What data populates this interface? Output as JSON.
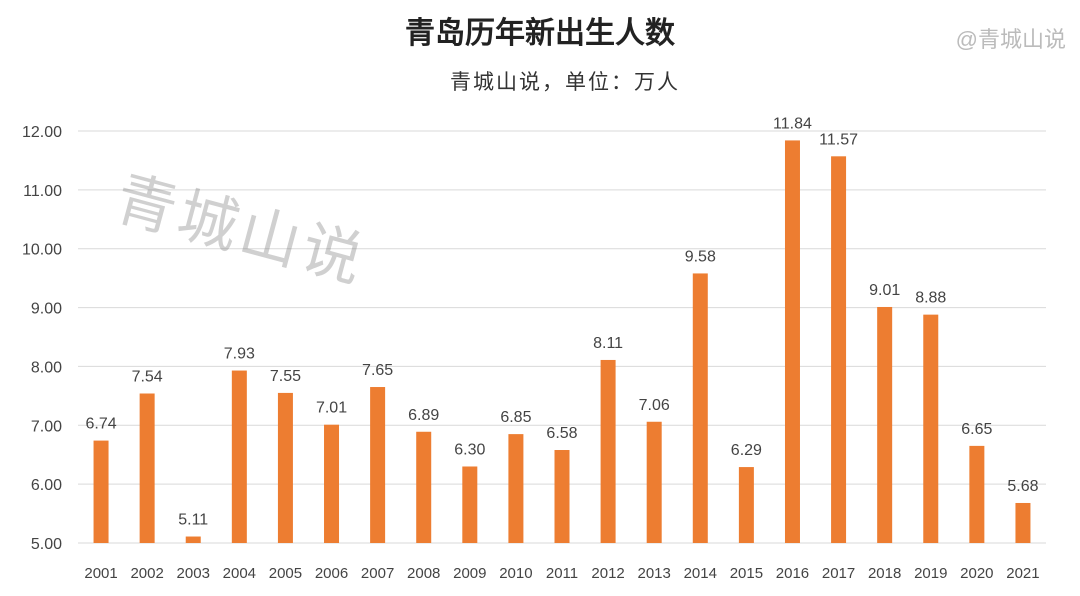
{
  "chart_data": {
    "type": "bar",
    "title": "青岛历年新出生人数",
    "subtitle": "青城山说，单位：万人",
    "categories": [
      "2001",
      "2002",
      "2003",
      "2004",
      "2005",
      "2006",
      "2007",
      "2008",
      "2009",
      "2010",
      "2011",
      "2012",
      "2013",
      "2014",
      "2015",
      "2016",
      "2017",
      "2018",
      "2019",
      "2020",
      "2021"
    ],
    "values": [
      6.74,
      7.54,
      5.11,
      7.93,
      7.55,
      7.01,
      7.65,
      6.89,
      6.3,
      6.85,
      6.58,
      8.11,
      7.06,
      9.58,
      6.29,
      11.84,
      11.57,
      9.01,
      8.88,
      6.65,
      5.68
    ],
    "ylim": [
      5,
      12
    ],
    "yticks": [
      "5.00",
      "6.00",
      "7.00",
      "8.00",
      "9.00",
      "10.00",
      "11.00",
      "12.00"
    ],
    "xlabel": "",
    "ylabel": "",
    "grid": true,
    "bar_color": "#ED7D31",
    "legend": "none"
  },
  "watermark": "青城山说",
  "watermark_handle": "@青城山说"
}
